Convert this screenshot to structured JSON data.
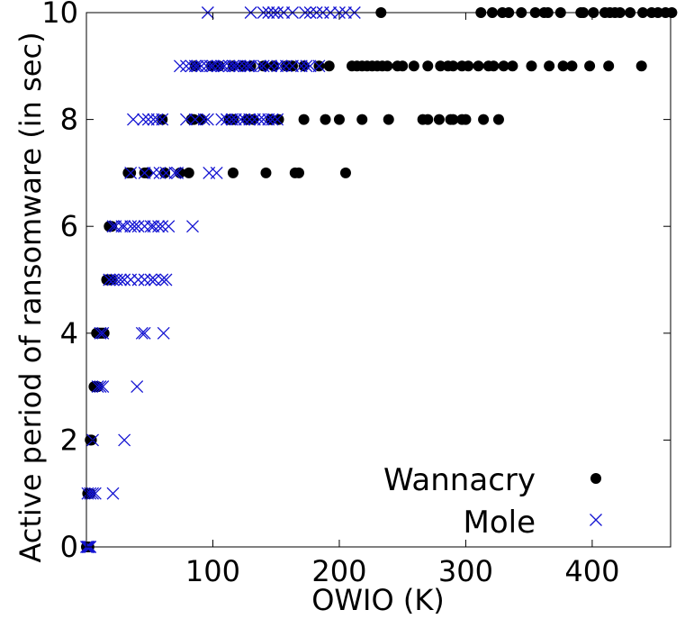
{
  "chart_data": {
    "type": "scatter",
    "xlabel": "OWIO (K)",
    "ylabel": "Active period of ransomware (in sec)",
    "xlim": [
      0,
      462
    ],
    "ylim": [
      0,
      10
    ],
    "x_ticks": [
      100,
      200,
      300,
      400
    ],
    "y_ticks": [
      0,
      2,
      4,
      6,
      8,
      10
    ],
    "grid": false,
    "legend_position": "bottom-right",
    "series": [
      {
        "name": "Wannacry",
        "marker": "circle",
        "color": "#000000",
        "points": [
          [
            0,
            0
          ],
          [
            1,
            0
          ],
          [
            2,
            0
          ],
          [
            1,
            1
          ],
          [
            2,
            1
          ],
          [
            3,
            1
          ],
          [
            3,
            2
          ],
          [
            4,
            2
          ],
          [
            6,
            3
          ],
          [
            7,
            3
          ],
          [
            8,
            3
          ],
          [
            9,
            3
          ],
          [
            8,
            4
          ],
          [
            9,
            4
          ],
          [
            10,
            4
          ],
          [
            11,
            4
          ],
          [
            12,
            4
          ],
          [
            13,
            4
          ],
          [
            14,
            4
          ],
          [
            16,
            5
          ],
          [
            17,
            5
          ],
          [
            18,
            5
          ],
          [
            19,
            5
          ],
          [
            20,
            5
          ],
          [
            18,
            6
          ],
          [
            20,
            6
          ],
          [
            33,
            7
          ],
          [
            35,
            7
          ],
          [
            46,
            7
          ],
          [
            48,
            7
          ],
          [
            62,
            7
          ],
          [
            74,
            7
          ],
          [
            81,
            7
          ],
          [
            116,
            7
          ],
          [
            142,
            7
          ],
          [
            165,
            7
          ],
          [
            168,
            7
          ],
          [
            205,
            7
          ],
          [
            60,
            8
          ],
          [
            83,
            8
          ],
          [
            85,
            8
          ],
          [
            91,
            8
          ],
          [
            113,
            8
          ],
          [
            116,
            8
          ],
          [
            127,
            8
          ],
          [
            132,
            8
          ],
          [
            146,
            8
          ],
          [
            152,
            8
          ],
          [
            172,
            8
          ],
          [
            189,
            8
          ],
          [
            200,
            8
          ],
          [
            218,
            8
          ],
          [
            239,
            8
          ],
          [
            266,
            8
          ],
          [
            270,
            8
          ],
          [
            279,
            8
          ],
          [
            288,
            8
          ],
          [
            290,
            8
          ],
          [
            297,
            8
          ],
          [
            300,
            8
          ],
          [
            314,
            8
          ],
          [
            326,
            8
          ],
          [
            86,
            9
          ],
          [
            99,
            9
          ],
          [
            105,
            9
          ],
          [
            116,
            9
          ],
          [
            124,
            9
          ],
          [
            130,
            9
          ],
          [
            140,
            9
          ],
          [
            148,
            9
          ],
          [
            158,
            9
          ],
          [
            160,
            9
          ],
          [
            163,
            9
          ],
          [
            172,
            9
          ],
          [
            184,
            9
          ],
          [
            192,
            9
          ],
          [
            210,
            9
          ],
          [
            214,
            9
          ],
          [
            218,
            9
          ],
          [
            222,
            9
          ],
          [
            226,
            9
          ],
          [
            230,
            9
          ],
          [
            234,
            9
          ],
          [
            238,
            9
          ],
          [
            246,
            9
          ],
          [
            250,
            9
          ],
          [
            259,
            9
          ],
          [
            270,
            9
          ],
          [
            280,
            9
          ],
          [
            286,
            9
          ],
          [
            290,
            9
          ],
          [
            297,
            9
          ],
          [
            302,
            9
          ],
          [
            310,
            9
          ],
          [
            318,
            9
          ],
          [
            322,
            9
          ],
          [
            330,
            9
          ],
          [
            337,
            9
          ],
          [
            352,
            9
          ],
          [
            366,
            9
          ],
          [
            377,
            9
          ],
          [
            384,
            9
          ],
          [
            398,
            9
          ],
          [
            413,
            9
          ],
          [
            439,
            9
          ],
          [
            233,
            10
          ],
          [
            312,
            10
          ],
          [
            321,
            10
          ],
          [
            329,
            10
          ],
          [
            334,
            10
          ],
          [
            344,
            10
          ],
          [
            355,
            10
          ],
          [
            362,
            10
          ],
          [
            365,
            10
          ],
          [
            375,
            10
          ],
          [
            391,
            10
          ],
          [
            393,
            10
          ],
          [
            401,
            10
          ],
          [
            410,
            10
          ],
          [
            414,
            10
          ],
          [
            418,
            10
          ],
          [
            422,
            10
          ],
          [
            430,
            10
          ],
          [
            440,
            10
          ],
          [
            447,
            10
          ],
          [
            452,
            10
          ],
          [
            458,
            10
          ],
          [
            463,
            10
          ]
        ]
      },
      {
        "name": "Mole",
        "marker": "x",
        "color": "#1414d2",
        "points": [
          [
            0,
            0
          ],
          [
            1,
            0
          ],
          [
            2,
            0
          ],
          [
            3,
            0
          ],
          [
            1,
            1
          ],
          [
            3,
            1
          ],
          [
            5,
            1
          ],
          [
            7,
            1
          ],
          [
            21,
            1
          ],
          [
            5,
            2
          ],
          [
            30,
            2
          ],
          [
            9,
            3
          ],
          [
            11,
            3
          ],
          [
            13,
            3
          ],
          [
            40,
            3
          ],
          [
            11,
            4
          ],
          [
            13,
            4
          ],
          [
            44,
            4
          ],
          [
            46,
            4
          ],
          [
            61,
            4
          ],
          [
            18,
            5
          ],
          [
            21,
            5
          ],
          [
            24,
            5
          ],
          [
            27,
            5
          ],
          [
            30,
            5
          ],
          [
            35,
            5
          ],
          [
            41,
            5
          ],
          [
            46,
            5
          ],
          [
            51,
            5
          ],
          [
            54,
            5
          ],
          [
            60,
            5
          ],
          [
            63,
            5
          ],
          [
            21,
            6
          ],
          [
            23,
            6
          ],
          [
            28,
            6
          ],
          [
            30,
            6
          ],
          [
            35,
            6
          ],
          [
            38,
            6
          ],
          [
            41,
            6
          ],
          [
            46,
            6
          ],
          [
            51,
            6
          ],
          [
            53,
            6
          ],
          [
            57,
            6
          ],
          [
            60,
            6
          ],
          [
            65,
            6
          ],
          [
            84,
            6
          ],
          [
            35,
            7
          ],
          [
            46,
            7
          ],
          [
            53,
            7
          ],
          [
            58,
            7
          ],
          [
            63,
            7
          ],
          [
            70,
            7
          ],
          [
            72,
            7
          ],
          [
            97,
            7
          ],
          [
            103,
            7
          ],
          [
            37,
            8
          ],
          [
            45,
            8
          ],
          [
            49,
            8
          ],
          [
            53,
            8
          ],
          [
            56,
            8
          ],
          [
            60,
            8
          ],
          [
            79,
            8
          ],
          [
            86,
            8
          ],
          [
            93,
            8
          ],
          [
            96,
            8
          ],
          [
            107,
            8
          ],
          [
            111,
            8
          ],
          [
            115,
            8
          ],
          [
            118,
            8
          ],
          [
            122,
            8
          ],
          [
            125,
            8
          ],
          [
            129,
            8
          ],
          [
            133,
            8
          ],
          [
            137,
            8
          ],
          [
            140,
            8
          ],
          [
            144,
            8
          ],
          [
            147,
            8
          ],
          [
            151,
            8
          ],
          [
            74,
            9
          ],
          [
            79,
            9
          ],
          [
            83,
            9
          ],
          [
            86,
            9
          ],
          [
            88,
            9
          ],
          [
            91,
            9
          ],
          [
            95,
            9
          ],
          [
            98,
            9
          ],
          [
            100,
            9
          ],
          [
            104,
            9
          ],
          [
            107,
            9
          ],
          [
            109,
            9
          ],
          [
            113,
            9
          ],
          [
            116,
            9
          ],
          [
            118,
            9
          ],
          [
            121,
            9
          ],
          [
            125,
            9
          ],
          [
            128,
            9
          ],
          [
            130,
            9
          ],
          [
            137,
            9
          ],
          [
            140,
            9
          ],
          [
            146,
            9
          ],
          [
            151,
            9
          ],
          [
            154,
            9
          ],
          [
            158,
            9
          ],
          [
            163,
            9
          ],
          [
            170,
            9
          ],
          [
            174,
            9
          ],
          [
            177,
            9
          ],
          [
            184,
            9
          ],
          [
            96,
            10
          ],
          [
            130,
            10
          ],
          [
            140,
            10
          ],
          [
            144,
            10
          ],
          [
            148,
            10
          ],
          [
            151,
            10
          ],
          [
            156,
            10
          ],
          [
            163,
            10
          ],
          [
            173,
            10
          ],
          [
            177,
            10
          ],
          [
            182,
            10
          ],
          [
            187,
            10
          ],
          [
            193,
            10
          ],
          [
            200,
            10
          ],
          [
            205,
            10
          ],
          [
            212,
            10
          ]
        ]
      }
    ]
  }
}
